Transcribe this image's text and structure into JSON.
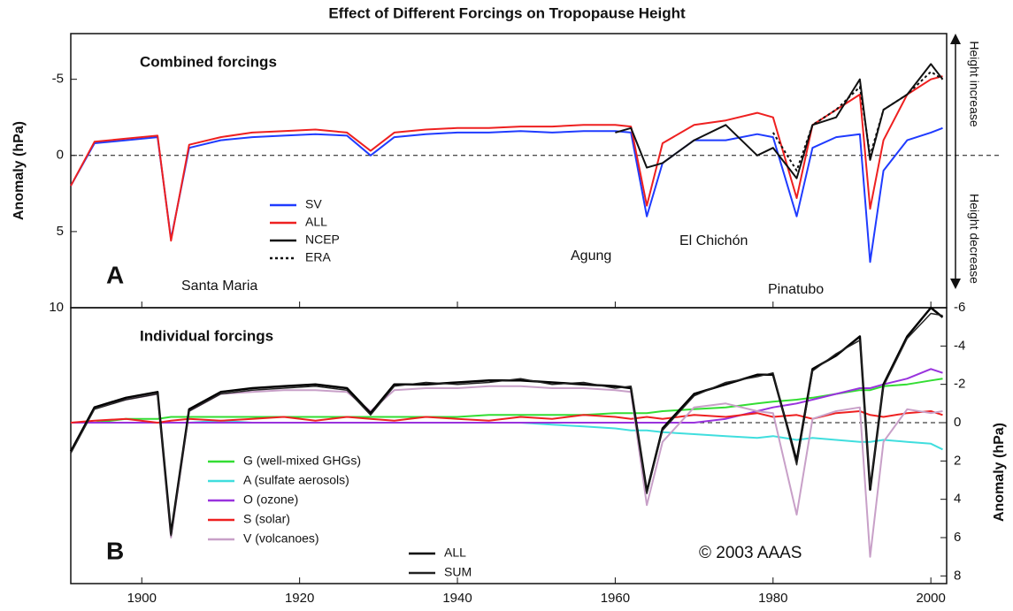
{
  "chart_data": [
    {
      "type": "line",
      "title": "Effect of Different Forcings on Tropopause Height",
      "subtitle": "Combined forcings",
      "panel_label": "A",
      "y_label": "Anomaly (hPa)",
      "y_inverted": true,
      "ylim": [
        -8,
        10
      ],
      "yticks": [
        -5,
        0,
        5,
        10
      ],
      "zero_line": true,
      "direction_labels": [
        "Height increase",
        "Height decrease"
      ],
      "annotations": [
        "Santa Maria",
        "Agung",
        "El Chichón",
        "Pinatubo"
      ],
      "x": [
        1891,
        1894,
        1898,
        1902,
        1903.7,
        1906,
        1910,
        1914,
        1918,
        1922,
        1926,
        1929,
        1932,
        1936,
        1940,
        1944,
        1948,
        1952,
        1956,
        1960,
        1962,
        1964,
        1966,
        1970,
        1974,
        1978,
        1980,
        1983,
        1985,
        1988,
        1991,
        1992.3,
        1994,
        1997,
        2000,
        2001.5
      ],
      "xlim": [
        1891,
        2002
      ],
      "series": [
        {
          "name": "SV",
          "color": "#1f3bff",
          "values": [
            2,
            -0.8,
            -1,
            -1.2,
            5.5,
            -0.5,
            -1,
            -1.2,
            -1.3,
            -1.4,
            -1.3,
            0,
            -1.2,
            -1.4,
            -1.5,
            -1.5,
            -1.6,
            -1.5,
            -1.6,
            -1.6,
            -1.5,
            4,
            0.5,
            -1,
            -1,
            -1.4,
            -1.2,
            4,
            -0.5,
            -1.2,
            -1.4,
            7,
            1,
            -1,
            -1.5,
            -1.8
          ]
        },
        {
          "name": "ALL",
          "color": "#ee2020",
          "values": [
            2,
            -0.9,
            -1.1,
            -1.3,
            5.6,
            -0.7,
            -1.2,
            -1.5,
            -1.6,
            -1.7,
            -1.5,
            -0.3,
            -1.5,
            -1.7,
            -1.8,
            -1.8,
            -1.9,
            -1.9,
            -2,
            -2,
            -1.9,
            3.3,
            -0.8,
            -2,
            -2.3,
            -2.8,
            -2.5,
            2.8,
            -2,
            -3,
            -4,
            3.5,
            -1,
            -4,
            -5,
            -5.2
          ]
        },
        {
          "name": "NCEP",
          "color": "#111111",
          "dash": false,
          "values": [
            null,
            null,
            null,
            null,
            null,
            null,
            null,
            null,
            null,
            null,
            null,
            null,
            null,
            null,
            null,
            null,
            null,
            null,
            null,
            -1.5,
            -1.8,
            0.8,
            0.5,
            -1,
            -2,
            0,
            -0.5,
            1.5,
            -2,
            -2.5,
            -5,
            0.3,
            -3,
            -4,
            -6,
            -5
          ]
        },
        {
          "name": "ERA",
          "color": "#111111",
          "dash": true,
          "values": [
            null,
            null,
            null,
            null,
            null,
            null,
            null,
            null,
            null,
            null,
            null,
            null,
            null,
            null,
            null,
            null,
            null,
            null,
            null,
            null,
            null,
            null,
            null,
            null,
            null,
            null,
            -1.5,
            1,
            -2,
            -3,
            -4.5,
            0,
            -3,
            -4,
            -5.5,
            -5
          ]
        }
      ]
    },
    {
      "type": "line",
      "subtitle": "Individual forcings",
      "panel_label": "B",
      "copyright": "© 2003 AAAS",
      "y_label": "Anomaly (hPa)",
      "y_axis_position": "right",
      "y_inverted": true,
      "ylim": [
        -6,
        8.4
      ],
      "yticks": [
        -6,
        -4,
        -2,
        0,
        2,
        4,
        6,
        8
      ],
      "zero_line": true,
      "x": [
        1891,
        1894,
        1898,
        1902,
        1903.7,
        1906,
        1910,
        1914,
        1918,
        1922,
        1926,
        1929,
        1932,
        1936,
        1940,
        1944,
        1948,
        1952,
        1956,
        1960,
        1962,
        1964,
        1966,
        1970,
        1974,
        1978,
        1980,
        1983,
        1985,
        1988,
        1991,
        1992.3,
        1994,
        1997,
        2000,
        2001.5
      ],
      "xlim": [
        1891,
        2002
      ],
      "xticks": [
        1900,
        1920,
        1940,
        1960,
        1980,
        2000
      ],
      "series": [
        {
          "name": "G (well-mixed GHGs)",
          "color": "#33dd33",
          "values": [
            0,
            0,
            -0.2,
            -0.2,
            -0.3,
            -0.3,
            -0.3,
            -0.3,
            -0.3,
            -0.3,
            -0.3,
            -0.3,
            -0.3,
            -0.3,
            -0.3,
            -0.4,
            -0.4,
            -0.4,
            -0.4,
            -0.5,
            -0.5,
            -0.5,
            -0.6,
            -0.7,
            -0.8,
            -1,
            -1.1,
            -1.2,
            -1.3,
            -1.5,
            -1.7,
            -1.7,
            -1.9,
            -2,
            -2.2,
            -2.3
          ]
        },
        {
          "name": "A (sulfate aerosols)",
          "color": "#40dede",
          "values": [
            0,
            0,
            0,
            0,
            0,
            0,
            -0.1,
            0,
            0,
            0,
            0,
            0,
            0,
            0,
            0,
            0,
            0,
            0.1,
            0.2,
            0.3,
            0.4,
            0.4,
            0.5,
            0.6,
            0.7,
            0.8,
            0.7,
            0.9,
            0.8,
            0.9,
            1,
            1,
            0.9,
            1,
            1.1,
            1.4
          ]
        },
        {
          "name": "O (ozone)",
          "color": "#9933dd",
          "values": [
            0,
            0,
            0,
            0,
            0,
            0,
            0,
            0,
            0,
            0,
            0,
            0,
            0,
            0,
            0,
            0,
            0,
            0,
            0,
            0,
            0,
            0,
            0,
            0,
            -0.2,
            -0.6,
            -0.8,
            -1,
            -1.2,
            -1.5,
            -1.8,
            -1.8,
            -2,
            -2.3,
            -2.8,
            -2.6
          ]
        },
        {
          "name": "S (solar)",
          "color": "#ee2020",
          "values": [
            0,
            -0.1,
            -0.2,
            0,
            -0.1,
            -0.2,
            -0.1,
            -0.2,
            -0.3,
            -0.1,
            -0.3,
            -0.2,
            -0.1,
            -0.3,
            -0.2,
            -0.1,
            -0.3,
            -0.2,
            -0.4,
            -0.3,
            -0.2,
            -0.3,
            -0.2,
            -0.4,
            -0.3,
            -0.5,
            -0.3,
            -0.4,
            -0.2,
            -0.5,
            -0.6,
            -0.4,
            -0.3,
            -0.5,
            -0.6,
            -0.4
          ]
        },
        {
          "name": "V (volcanoes)",
          "color": "#c8a0c8",
          "values": [
            1.5,
            -0.8,
            -1.2,
            -1.5,
            6,
            -0.6,
            -1.5,
            -1.6,
            -1.7,
            -1.7,
            -1.6,
            -0.6,
            -1.7,
            -1.8,
            -1.8,
            -1.9,
            -1.9,
            -1.8,
            -1.8,
            -1.7,
            -1.6,
            4.3,
            1,
            -0.8,
            -1,
            -0.6,
            -0.5,
            4.8,
            -0.2,
            -0.6,
            -0.8,
            7,
            1,
            -0.7,
            -0.5,
            -0.6
          ]
        },
        {
          "name": "ALL",
          "color": "#000000",
          "width": 2.5,
          "values": [
            1.5,
            -0.8,
            -1.3,
            -1.6,
            5.8,
            -0.7,
            -1.6,
            -1.8,
            -1.9,
            -2,
            -1.8,
            -0.5,
            -2,
            -2,
            -2.1,
            -2.2,
            -2.2,
            -2.1,
            -2,
            -1.9,
            -1.8,
            3.6,
            0.3,
            -1.5,
            -2,
            -2.5,
            -2.5,
            2,
            -2.8,
            -3.5,
            -4.5,
            3.5,
            -2,
            -4.5,
            -6,
            -5.5
          ]
        },
        {
          "name": "SUM",
          "color": "#222222",
          "width": 1.5,
          "values": [
            1.6,
            -0.7,
            -1.2,
            -1.5,
            5.9,
            -0.6,
            -1.5,
            -1.7,
            -1.8,
            -1.9,
            -1.7,
            -0.4,
            -1.9,
            -2.1,
            -2,
            -2.1,
            -2.3,
            -2,
            -2.1,
            -1.8,
            -1.9,
            3.7,
            0.4,
            -1.4,
            -2.1,
            -2.4,
            -2.6,
            2.2,
            -2.7,
            -3.6,
            -4.3,
            3.4,
            -1.9,
            -4.4,
            -5.7,
            -5.6
          ]
        }
      ]
    }
  ]
}
